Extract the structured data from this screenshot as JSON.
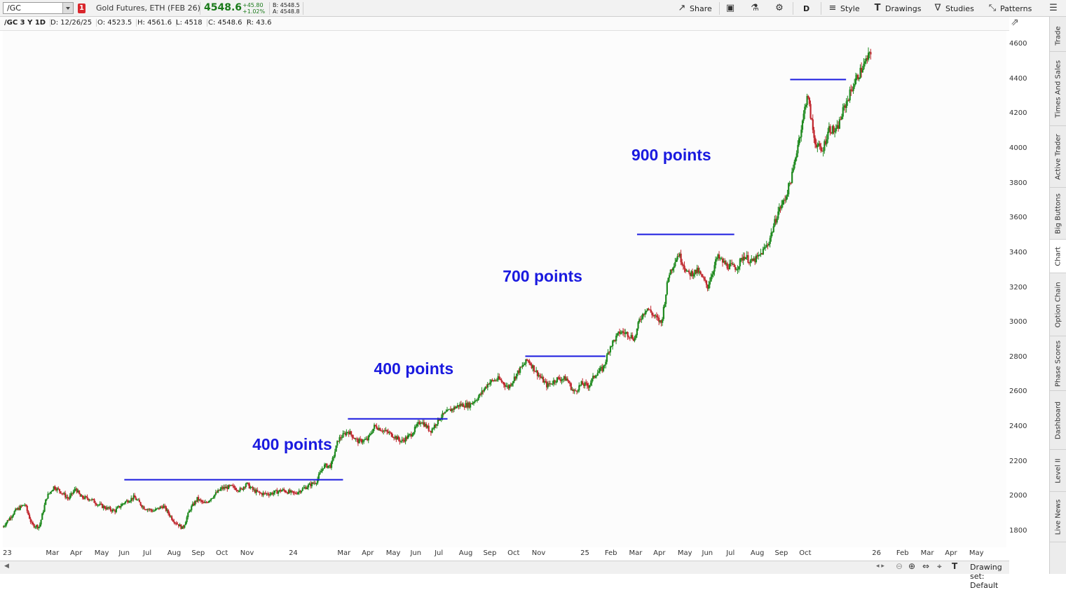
{
  "toolbar": {
    "symbol": "/GC",
    "link_badge": "1",
    "description": "Gold Futures, ETH (FEB 26)",
    "last_price": "4548.6",
    "net_change": "+45.80",
    "pct_change": "+1.02%",
    "bid": "B: 4548.5",
    "ask": "A: 4548.8",
    "share_label": "Share",
    "interval_label": "D",
    "style_label": "Style",
    "drawings_label": "Drawings",
    "studies_label": "Studies",
    "patterns_label": "Patterns",
    "icons": [
      "share-icon",
      "snapshot-icon",
      "flask-icon",
      "gear-icon",
      "style-icon",
      "drawings-icon",
      "studies-icon",
      "patterns-icon",
      "menu-icon"
    ]
  },
  "subbar": {
    "chart_label": "/GC 3 Y 1D",
    "date": "D: 12/26/25",
    "open": "O: 4523.5",
    "high": "H: 4561.6",
    "low": "L: 4518",
    "close": "C: 4548.6",
    "range": "R: 43.6"
  },
  "annotations": [
    "400 points",
    "400 points",
    "700 points",
    "900 points"
  ],
  "bottom_bar": {
    "drawing_set": "Drawing set: Default"
  },
  "right_tabs": [
    "Trade",
    "Times And Sales",
    "Active Trader",
    "Big Buttons",
    "Chart",
    "Option Chain",
    "Phase Scores",
    "Dashboard",
    "Level II",
    "Live News"
  ],
  "active_tab": "Chart",
  "colors": {
    "up": "#1f8a1f",
    "down": "#c0262d",
    "level_line": "#1a1adf",
    "annotation": "#1a1adf"
  },
  "chart_data": {
    "type": "candlestick",
    "y_ticks": [
      1800,
      2000,
      2200,
      2400,
      2600,
      2800,
      3000,
      3200,
      3400,
      3600,
      3800,
      4000,
      4200,
      4400,
      4600
    ],
    "ylim": [
      1712,
      4680
    ],
    "x_labels": [
      "23",
      "Mar",
      "Apr",
      "May",
      "Jun",
      "Jul",
      "Aug",
      "Sep",
      "Oct",
      "Nov",
      "24",
      "Mar",
      "Apr",
      "May",
      "Jun",
      "Jul",
      "Aug",
      "Sep",
      "Oct",
      "Nov",
      "25",
      "Feb",
      "Mar",
      "Apr",
      "May",
      "Jun",
      "Jul",
      "Aug",
      "Sep",
      "Oct",
      "26",
      "Feb",
      "Mar",
      "Apr",
      "May"
    ],
    "x_label_months": [
      0,
      2,
      3,
      4,
      5,
      6,
      7,
      8,
      9,
      10,
      12,
      14,
      15,
      16,
      17,
      18,
      19,
      20,
      21,
      22,
      24,
      25,
      26,
      27,
      28,
      29,
      30,
      31,
      32,
      33,
      36,
      37,
      38,
      39,
      40
    ],
    "xlim_months": [
      0,
      41.3
    ],
    "path_months": [
      0,
      0.5,
      0.9,
      1.2,
      1.5,
      1.8,
      2.1,
      2.4,
      2.7,
      3.0,
      3.2,
      3.6,
      3.9,
      4.2,
      4.6,
      5.0,
      5.4,
      5.8,
      6.2,
      6.6,
      7.0,
      7.4,
      7.7,
      8.0,
      8.3,
      8.6,
      9.0,
      9.4,
      9.8,
      10.0,
      10.3,
      10.6,
      11.0,
      11.5,
      12.0,
      12.5,
      12.9,
      13.2,
      13.5,
      13.8,
      14.2,
      14.6,
      15.0,
      15.3,
      15.7,
      16.0,
      16.4,
      16.8,
      17.2,
      17.6,
      18.0,
      18.4,
      18.8,
      19.2,
      19.6,
      20.0,
      20.4,
      20.8,
      21.2,
      21.6,
      22.0,
      22.4,
      22.8,
      23.2,
      23.5,
      23.8,
      24.1,
      24.4,
      24.7,
      25.0,
      25.4,
      25.7,
      26.0,
      26.2,
      26.5,
      26.8,
      27.1,
      27.4,
      27.8,
      28.2,
      28.6,
      29.0,
      29.4,
      29.8,
      30.2,
      30.5,
      30.8,
      31.1,
      31.5,
      31.9,
      32.2,
      32.5,
      32.7,
      32.9,
      33.1,
      33.4,
      33.7,
      34.0,
      34.3,
      34.6,
      35.0,
      35.3,
      35.7
    ],
    "path_prices": [
      1830,
      1920,
      1960,
      1840,
      1830,
      2000,
      2060,
      2030,
      1990,
      2050,
      2000,
      1990,
      1960,
      1940,
      1920,
      1970,
      2000,
      1940,
      1920,
      1950,
      1870,
      1820,
      1930,
      1990,
      1960,
      2000,
      2050,
      2060,
      2040,
      2080,
      2040,
      2020,
      2020,
      2040,
      2020,
      2060,
      2090,
      2180,
      2180,
      2330,
      2380,
      2320,
      2330,
      2410,
      2380,
      2360,
      2320,
      2360,
      2440,
      2380,
      2460,
      2500,
      2530,
      2530,
      2580,
      2660,
      2680,
      2630,
      2720,
      2790,
      2710,
      2640,
      2680,
      2680,
      2600,
      2650,
      2640,
      2710,
      2740,
      2870,
      2950,
      2940,
      2910,
      3020,
      3090,
      3040,
      3000,
      3280,
      3400,
      3280,
      3300,
      3210,
      3380,
      3330,
      3320,
      3390,
      3350,
      3380,
      3460,
      3640,
      3720,
      3860,
      4020,
      4150,
      4320,
      4050,
      3980,
      4120,
      4100,
      4230,
      4370,
      4450,
      4550
    ],
    "level_lines": [
      {
        "months": [
          5.0,
          14.0
        ],
        "price": 2100
      },
      {
        "months": [
          14.2,
          18.3
        ],
        "price": 2450
      },
      {
        "months": [
          21.5,
          24.8
        ],
        "price": 2810
      },
      {
        "months": [
          26.1,
          30.1
        ],
        "price": 3510
      },
      {
        "months": [
          32.4,
          34.7
        ],
        "price": 4400
      }
    ],
    "annotation_anchors": [
      {
        "month": 12.0,
        "price": 2300
      },
      {
        "month": 17.0,
        "price": 2735
      },
      {
        "month": 22.3,
        "price": 3265
      },
      {
        "month": 27.6,
        "price": 3965
      }
    ]
  }
}
